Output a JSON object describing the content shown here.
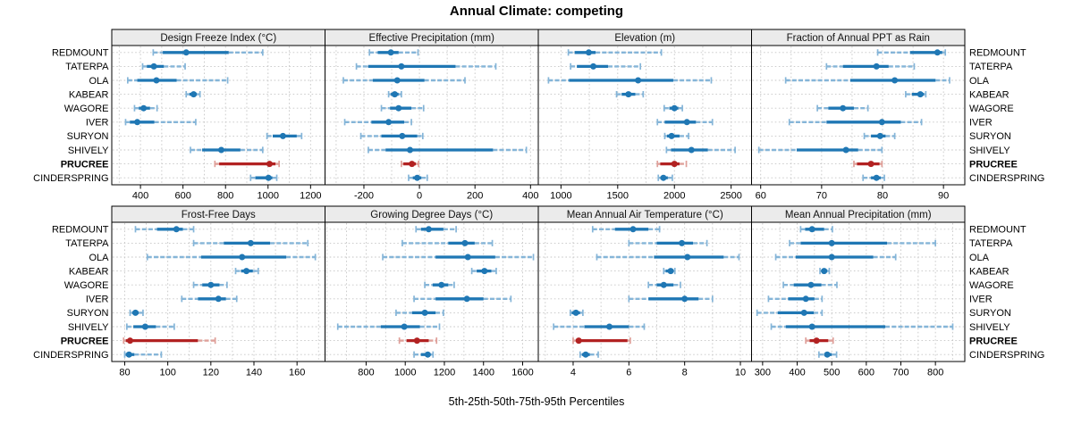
{
  "figure": {
    "title": "Annual Climate: competing",
    "caption": "5th-25th-50th-75th-95th Percentiles"
  },
  "colors": {
    "blue": "#1f77b4",
    "light_blue": "#85b5d8",
    "red": "#b22222",
    "light_red": "#dfa09a",
    "grid": "#c6c6c6",
    "header_bg": "#ebebeb",
    "border": "#000000",
    "text": "#000000"
  },
  "chart_data": {
    "type": "dot-interval",
    "percentiles": [
      5,
      25,
      50,
      75,
      95
    ],
    "sites": [
      "REDMOUNT",
      "TATERPA",
      "OLA",
      "KABEAR",
      "WAGORE",
      "IVER",
      "SURYON",
      "SHIVELY",
      "PRUCREE",
      "CINDERSPRING"
    ],
    "highlight_site": "PRUCREE",
    "legend_note": "5th-25th-50th-75th-95th Percentiles",
    "panels": [
      {
        "title": "Design Freeze Index (°C)",
        "ticks": [
          400,
          600,
          800,
          1000,
          1200
        ],
        "minor_step": 100,
        "xlim": [
          265,
          1268
        ],
        "values": [
          [
            460,
            505,
            615,
            815,
            975
          ],
          [
            410,
            430,
            463,
            510,
            610
          ],
          [
            340,
            385,
            475,
            570,
            810
          ],
          [
            615,
            630,
            650,
            665,
            680
          ],
          [
            372,
            392,
            415,
            445,
            478
          ],
          [
            330,
            350,
            385,
            465,
            660
          ],
          [
            995,
            1022,
            1070,
            1135,
            1158
          ],
          [
            635,
            690,
            780,
            870,
            975
          ],
          [
            750,
            770,
            1007,
            1035,
            1052
          ],
          [
            918,
            940,
            1002,
            1020,
            1041
          ]
        ]
      },
      {
        "title": "Effective Precipitation (mm)",
        "ticks": [
          -200,
          0,
          200,
          400
        ],
        "minor_step": 100,
        "xlim": [
          -340,
          428
        ],
        "values": [
          [
            -180,
            -150,
            -103,
            -75,
            -5
          ],
          [
            -227,
            -185,
            -65,
            130,
            275
          ],
          [
            -274,
            -168,
            -80,
            18,
            164
          ],
          [
            -111,
            -103,
            -89,
            -75,
            -65
          ],
          [
            -137,
            -106,
            -75,
            -29,
            15
          ],
          [
            -269,
            -173,
            -111,
            -55,
            -29
          ],
          [
            -211,
            -137,
            -62,
            -8,
            12
          ],
          [
            -184,
            -122,
            -34,
            265,
            385
          ],
          [
            -65,
            -58,
            -27,
            -13,
            -3
          ],
          [
            -39,
            -24,
            -8,
            7,
            28
          ]
        ]
      },
      {
        "title": "Elevation (m)",
        "ticks": [
          1000,
          1500,
          2000,
          2500
        ],
        "minor_step": 250,
        "xlim": [
          800,
          2680
        ],
        "values": [
          [
            1065,
            1120,
            1245,
            1305,
            1885
          ],
          [
            1085,
            1140,
            1285,
            1415,
            1700
          ],
          [
            890,
            1070,
            1680,
            1990,
            2325
          ],
          [
            1490,
            1535,
            1595,
            1655,
            1725
          ],
          [
            1910,
            1955,
            2000,
            2035,
            2070
          ],
          [
            1850,
            1915,
            2110,
            2190,
            2335
          ],
          [
            1915,
            1935,
            1975,
            2045,
            2125
          ],
          [
            1930,
            1970,
            2150,
            2295,
            2535
          ],
          [
            1850,
            1875,
            2000,
            2045,
            2105
          ],
          [
            1858,
            1876,
            1903,
            1942,
            1982
          ]
        ]
      },
      {
        "title": "Fraction of Annual PPT as Rain",
        "ticks": [
          60,
          70,
          80,
          90
        ],
        "minor_step": 5,
        "xlim": [
          58.5,
          93.5
        ],
        "values": [
          [
            79.2,
            84.5,
            89.0,
            89.8,
            90.3
          ],
          [
            70.8,
            73.5,
            79.0,
            81.0,
            85.2
          ],
          [
            64.1,
            74.7,
            82.0,
            88.7,
            91.0
          ],
          [
            83.8,
            84.8,
            86.2,
            86.8,
            87.1
          ],
          [
            69.3,
            71.1,
            73.5,
            75.3,
            77.6
          ],
          [
            64.7,
            70.8,
            79.9,
            83.0,
            86.4
          ],
          [
            77.0,
            78.1,
            79.6,
            80.5,
            82.0
          ],
          [
            59.7,
            65.9,
            74.0,
            76.0,
            79.9
          ],
          [
            75.3,
            75.8,
            78.1,
            79.5,
            79.9
          ],
          [
            76.8,
            78.1,
            79.0,
            79.7,
            80.3
          ]
        ]
      },
      {
        "title": "Frost-Free Days",
        "ticks": [
          80,
          100,
          120,
          140,
          160
        ],
        "minor_step": 10,
        "xlim": [
          74,
          173
        ],
        "values": [
          [
            85,
            95,
            104,
            107,
            112
          ],
          [
            112,
            126,
            138.5,
            147.5,
            165
          ],
          [
            90.5,
            115.5,
            134.5,
            155,
            168.5
          ],
          [
            131.5,
            134,
            136.5,
            139.5,
            142
          ],
          [
            112,
            116,
            120,
            124,
            127.5
          ],
          [
            106.5,
            114,
            123.5,
            127,
            132
          ],
          [
            82.5,
            83.5,
            85,
            86.5,
            88.5
          ],
          [
            81,
            84,
            89.5,
            94.5,
            103
          ],
          [
            79.5,
            80.5,
            82.5,
            114,
            122
          ],
          [
            80,
            80.5,
            82,
            84.5,
            97
          ]
        ]
      },
      {
        "title": "Growing Degree Days (°C)",
        "ticks": [
          800,
          1000,
          1200,
          1400,
          1600
        ],
        "minor_step": 100,
        "xlim": [
          590,
          1680
        ],
        "values": [
          [
            1055,
            1080,
            1120,
            1195,
            1260
          ],
          [
            985,
            1220,
            1305,
            1355,
            1445
          ],
          [
            885,
            1155,
            1320,
            1460,
            1655
          ],
          [
            1340,
            1365,
            1405,
            1440,
            1465
          ],
          [
            1100,
            1140,
            1185,
            1220,
            1250
          ],
          [
            1045,
            1155,
            1315,
            1400,
            1540
          ],
          [
            953,
            1035,
            1100,
            1155,
            1195
          ],
          [
            655,
            875,
            995,
            1075,
            1175
          ],
          [
            970,
            1007,
            1060,
            1120,
            1160
          ],
          [
            1045,
            1080,
            1115,
            1130,
            1142
          ]
        ]
      },
      {
        "title": "Mean Annual Air Temperature (°C)",
        "ticks": [
          4,
          6,
          8,
          10
        ],
        "minor_step": 1,
        "xlim": [
          2.75,
          10.4
        ],
        "values": [
          [
            4.7,
            5.5,
            6.15,
            6.7,
            7.1
          ],
          [
            6.0,
            7.0,
            7.9,
            8.3,
            8.8
          ],
          [
            4.85,
            6.9,
            8.1,
            9.4,
            9.95
          ],
          [
            7.25,
            7.32,
            7.5,
            7.6,
            7.65
          ],
          [
            6.7,
            7.0,
            7.25,
            7.6,
            7.85
          ],
          [
            6.0,
            6.7,
            8.0,
            8.5,
            9.0
          ],
          [
            3.9,
            3.95,
            4.1,
            4.25,
            4.35
          ],
          [
            3.3,
            4.4,
            5.3,
            6.0,
            6.55
          ],
          [
            4.0,
            4.1,
            4.2,
            5.95,
            6.05
          ],
          [
            4.25,
            4.32,
            4.45,
            4.6,
            4.9
          ]
        ]
      },
      {
        "title": "Mean Annual Precipitation (mm)",
        "ticks": [
          300,
          400,
          500,
          600,
          700,
          800
        ],
        "minor_step": 50,
        "xlim": [
          268,
          885
        ],
        "values": [
          [
            410,
            423,
            443,
            478,
            502
          ],
          [
            378,
            410,
            500,
            660,
            800
          ],
          [
            338,
            396,
            500,
            620,
            685
          ],
          [
            466,
            472,
            478,
            487,
            493
          ],
          [
            360,
            390,
            440,
            470,
            515
          ],
          [
            317,
            374,
            425,
            450,
            472
          ],
          [
            284,
            344,
            420,
            448,
            472
          ],
          [
            325,
            367,
            443,
            655,
            850
          ],
          [
            425,
            436,
            456,
            490,
            504
          ],
          [
            463,
            478,
            487,
            500,
            514
          ]
        ]
      }
    ]
  }
}
